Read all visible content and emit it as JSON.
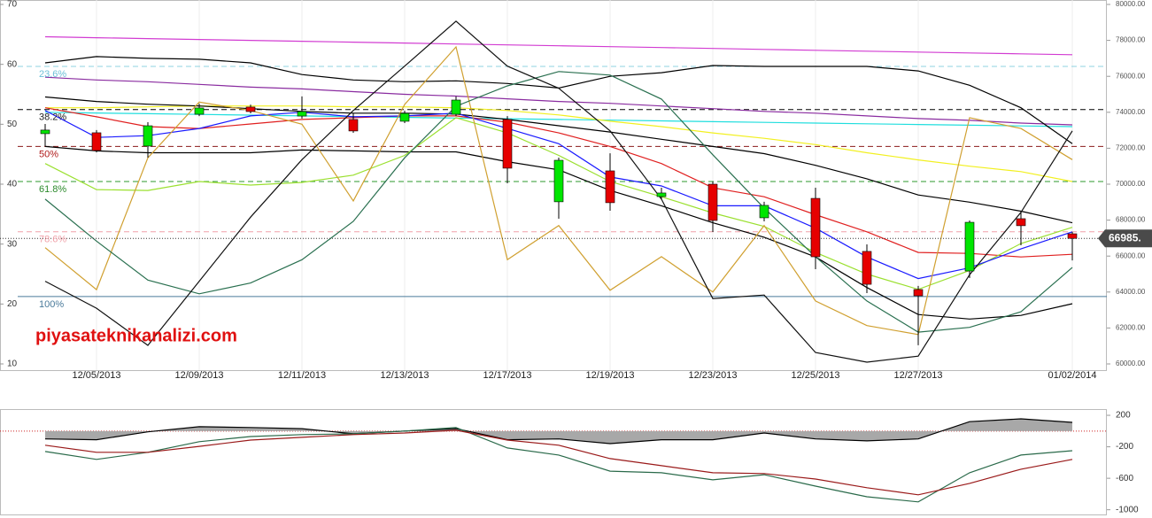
{
  "chart_data": [
    {
      "type": "candlestick",
      "categories": [
        null,
        "12/05/2013",
        null,
        "12/09/2013",
        null,
        "12/11/2013",
        null,
        "12/13/2013",
        null,
        "12/17/2013",
        null,
        "12/19/2013",
        null,
        "12/23/2013",
        null,
        "12/25/2013",
        null,
        "12/27/2013",
        null,
        null,
        "01/02/2014"
      ],
      "open": [
        72810,
        72860,
        72120,
        73890,
        74290,
        73790,
        73600,
        73500,
        73890,
        73600,
        69020,
        70740,
        69310,
        70000,
        68130,
        69210,
        66260,
        64140,
        65170,
        68080,
        67240
      ],
      "high": [
        73350,
        73010,
        73450,
        74480,
        74430,
        74880,
        73940,
        74090,
        74880,
        73790,
        71480,
        71720,
        69800,
        70150,
        69020,
        69800,
        66650,
        64340,
        67980,
        68520,
        67340
      ],
      "low": [
        72120,
        71770,
        71480,
        73790,
        73940,
        73650,
        72860,
        73400,
        73790,
        70050,
        68080,
        68520,
        69160,
        67340,
        67930,
        65270,
        63940,
        61040,
        64780,
        66600,
        65760
      ],
      "close": [
        73010,
        71870,
        73250,
        74240,
        74040,
        74040,
        72960,
        73940,
        74680,
        70890,
        71330,
        68970,
        69510,
        67980,
        68820,
        65960,
        64430,
        63790,
        67880,
        67690,
        66985
      ],
      "up_color": "#00e600",
      "down_color": "#e60000",
      "ylim": [
        60000,
        80000
      ],
      "yticks": [
        {
          "value": 60000,
          "label": "60000.00"
        },
        {
          "value": 62000,
          "label": "62000.00"
        },
        {
          "value": 64000,
          "label": "64000.00"
        },
        {
          "value": 66000,
          "label": "66000.00"
        },
        {
          "value": 68000,
          "label": "68000.00"
        },
        {
          "value": 70000,
          "label": "70000.00"
        },
        {
          "value": 72000,
          "label": "72000.00"
        },
        {
          "value": 74000,
          "label": "74000.00"
        },
        {
          "value": 76000,
          "label": "76000.00"
        },
        {
          "value": 78000,
          "label": "78000.00"
        },
        {
          "value": 80000,
          "label": "80000.00"
        }
      ],
      "y2lim": [
        10,
        70
      ],
      "y2ticks": [
        10,
        20,
        30,
        40,
        50,
        60,
        70
      ],
      "series": [
        {
          "color": "#d23cd2",
          "values": [
            78200,
            78150,
            78100,
            78050,
            78000,
            77950,
            77900,
            77850,
            77800,
            77750,
            77700,
            77650,
            77600,
            77550,
            77500,
            77450,
            77400,
            77350,
            77300,
            77250,
            77200
          ]
        },
        {
          "color": "#8a2ca0",
          "values": [
            75950,
            75800,
            75700,
            75550,
            75400,
            75300,
            75150,
            75000,
            74900,
            74750,
            74600,
            74500,
            74350,
            74200,
            74050,
            73950,
            73800,
            73650,
            73550,
            73400,
            73300
          ]
        },
        {
          "color": "#20dede",
          "values": [
            74000,
            73960,
            73920,
            73880,
            73840,
            73800,
            73760,
            73720,
            73680,
            73640,
            73600,
            73560,
            73520,
            73480,
            73440,
            73400,
            73360,
            73320,
            73280,
            73240,
            73200
          ]
        },
        {
          "color": "#f2f020",
          "values": [
            74250,
            74250,
            74300,
            74350,
            74350,
            74350,
            74300,
            74300,
            74250,
            74100,
            73850,
            73500,
            73200,
            72850,
            72550,
            72200,
            71750,
            71350,
            71000,
            70700,
            70150
          ]
        },
        {
          "color": "#000000",
          "values": [
            76750,
            77100,
            77000,
            76950,
            76750,
            76100,
            75800,
            75700,
            75750,
            75600,
            75350,
            76000,
            76200,
            76600,
            76550,
            76550,
            76550,
            76300,
            75500,
            74250,
            72250
          ]
        },
        {
          "color": "#000000",
          "values": [
            74850,
            74600,
            74450,
            74350,
            74200,
            74050,
            73950,
            73950,
            73900,
            73600,
            73250,
            72900,
            72500,
            72100,
            71700,
            71050,
            70300,
            69400,
            69000,
            68500,
            67850
          ]
        },
        {
          "color": "#000000",
          "values": [
            72100,
            71850,
            71750,
            71750,
            71750,
            71900,
            71850,
            71800,
            71800,
            71250,
            70800,
            69650,
            68800,
            67850,
            67050,
            65950,
            64250,
            62750,
            62500,
            62700,
            63350
          ]
        },
        {
          "color": "#e02020",
          "values": [
            74250,
            73750,
            73200,
            73100,
            73350,
            73600,
            73700,
            73800,
            73800,
            73450,
            72850,
            72100,
            71150,
            69800,
            69300,
            68300,
            67350,
            66200,
            66150,
            65950,
            66100
          ]
        },
        {
          "color": "#9be030",
          "values": [
            71150,
            69700,
            69650,
            70150,
            69950,
            70100,
            70500,
            71600,
            73700,
            72850,
            71600,
            70150,
            69300,
            68400,
            67650,
            66200,
            65000,
            64150,
            65200,
            66700,
            67600
          ]
        },
        {
          "color": "#1a1aff",
          "values": [
            74100,
            72600,
            72700,
            73100,
            73800,
            74000,
            73750,
            73800,
            73950,
            73100,
            72250,
            70400,
            69900,
            68800,
            68800,
            67550,
            65950,
            64750,
            65350,
            66400,
            67350
          ]
        },
        {
          "color": "#d0a030",
          "axis": "y2",
          "values": [
            29.4,
            22.4,
            44.4,
            53.7,
            52.3,
            50.0,
            37.2,
            53.3,
            62.9,
            27.4,
            33.1,
            22.3,
            27.9,
            22.0,
            33.1,
            20.5,
            16.4,
            14.9,
            51.1,
            49.3,
            44.1
          ]
        },
        {
          "color": "#2a7050",
          "axis": "y2",
          "values": [
            37.5,
            30.5,
            24.0,
            21.7,
            23.5,
            27.4,
            33.8,
            44.4,
            53.0,
            56.4,
            58.8,
            58.2,
            54.2,
            44.9,
            36.0,
            27.9,
            20.5,
            15.3,
            16.1,
            18.7,
            26.1
          ]
        },
        {
          "color": "#111111",
          "axis": "y2",
          "values": [
            23.8,
            19.3,
            13.1,
            23.8,
            34.5,
            44.1,
            52.3,
            59.7,
            67.2,
            59.7,
            56.0,
            48.9,
            37.5,
            20.9,
            21.5,
            11.9,
            10.3,
            11.3,
            24.9,
            35.3,
            48.9
          ]
        }
      ],
      "levels": [
        {
          "label": "23.6%",
          "value": 76550,
          "color": "#8fd3e0",
          "text_color": "#6cc0d8",
          "dash": true
        },
        {
          "label": "38.2%",
          "value": 74150,
          "color": "#000000",
          "text_color": "#222222",
          "dash": true
        },
        {
          "label": "50%",
          "value": 72100,
          "color": "#8b1a1a",
          "text_color": "#b01a1a",
          "dash": true
        },
        {
          "label": "61.8%",
          "value": 70150,
          "color": "#2c9a2c",
          "text_color": "#2c8a2c",
          "dash": true
        },
        {
          "label": "78.6%",
          "value": 67350,
          "color": "#f0a0a8",
          "text_color": "#f0a0a8",
          "dash": true
        },
        {
          "label": "100%",
          "value": 63750,
          "color": "#4a7a9a",
          "text_color": "#4a7a9a",
          "dash": false
        }
      ],
      "last_price": {
        "value": 66985,
        "label": "66985."
      },
      "watermark": "piyasateknikanalizi.com"
    },
    {
      "type": "line",
      "ylim": [
        -1060,
        268
      ],
      "yticks": [
        200,
        -200,
        -600,
        -1000
      ],
      "series": [
        {
          "color": "#000000",
          "fill": "#a8a8a8",
          "values": [
            -100,
            -110,
            -10,
            55,
            45,
            30,
            -35,
            0,
            30,
            -110,
            -100,
            -160,
            -110,
            -110,
            -25,
            -100,
            -125,
            -100,
            120,
            155,
            110
          ]
        },
        {
          "color": "#2a6a4a",
          "values": [
            -260,
            -360,
            -270,
            -135,
            -70,
            -45,
            -35,
            0,
            45,
            -215,
            -305,
            -510,
            -530,
            -620,
            -555,
            -700,
            -835,
            -900,
            -530,
            -305,
            -250
          ]
        },
        {
          "color": "#9a1a1a",
          "values": [
            -180,
            -270,
            -270,
            -195,
            -115,
            -80,
            -45,
            -25,
            10,
            -115,
            -180,
            -350,
            -440,
            -530,
            -540,
            -610,
            -720,
            -810,
            -665,
            -485,
            -360
          ]
        }
      ]
    }
  ]
}
